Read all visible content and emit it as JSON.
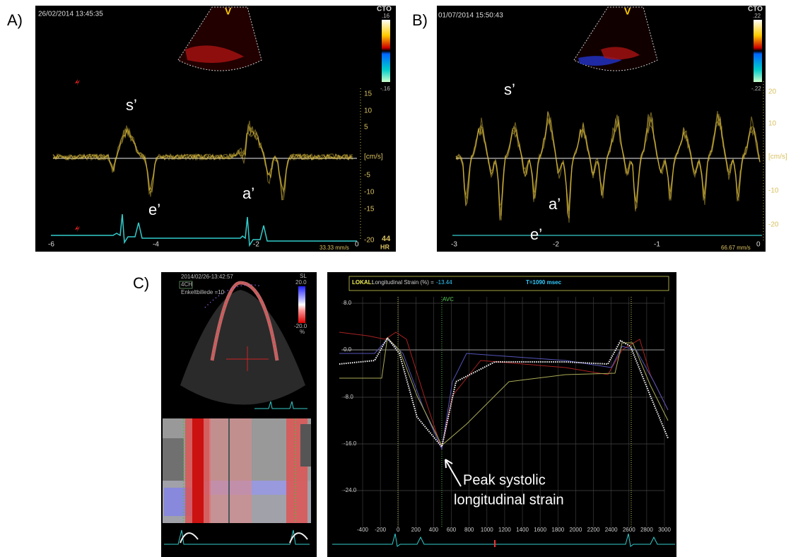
{
  "panels": {
    "a": {
      "label": "A)",
      "timestamp": "26/02/2014 13:45:35",
      "mode": "V",
      "map": "CTO",
      "scale_max": ".16",
      "scale_min": "-.16",
      "yticks": [
        "15",
        "10",
        "5",
        "[cm/s]",
        "-5",
        "-10",
        "-15",
        "-20"
      ],
      "xticks": [
        "-6",
        "-4",
        "-2",
        "0"
      ],
      "hr": "44",
      "hr_label": "HR",
      "speed": "33.33 mm/s",
      "annotations": [
        "s’",
        "e’",
        "a’"
      ]
    },
    "b": {
      "label": "B)",
      "timestamp": "01/07/2014 15:50:43",
      "mode": "V",
      "map": "CTO",
      "scale_max": ".22",
      "scale_min": "-.22",
      "yticks": [
        "20",
        "10",
        "[cm/s]",
        "-10",
        "-20"
      ],
      "xticks": [
        "-3",
        "-2",
        "-1",
        "0"
      ],
      "speed": "66.67 mm/s",
      "annotations": [
        "s’",
        "a’",
        "e’"
      ]
    },
    "c": {
      "label": "C)",
      "timestamp": "2014/02/26-13:42:57",
      "view": "4CH",
      "frame": "Enkeltbillede =10",
      "scale_name": "SL",
      "scale_max": "20.0",
      "scale_min": "-20.0",
      "scale_unit": "%",
      "readout_label": "LOKAL:",
      "readout_text": "Longitudinal Strain (%) =",
      "readout_value": "-13.44",
      "time": "T=1090 msec",
      "avc": "AVC",
      "yticks": [
        "8.0",
        "0.0",
        "-8.0",
        "-16.0",
        "-24.0"
      ],
      "xticks": [
        "-400",
        "-200",
        "0",
        "200",
        "400",
        "600",
        "800",
        "1000",
        "1200",
        "1400",
        "1600",
        "1800",
        "2000",
        "2200",
        "2400",
        "2600",
        "2800",
        "3000"
      ],
      "annotation": [
        "Peak systolic",
        "longitudinal strain"
      ]
    }
  }
}
